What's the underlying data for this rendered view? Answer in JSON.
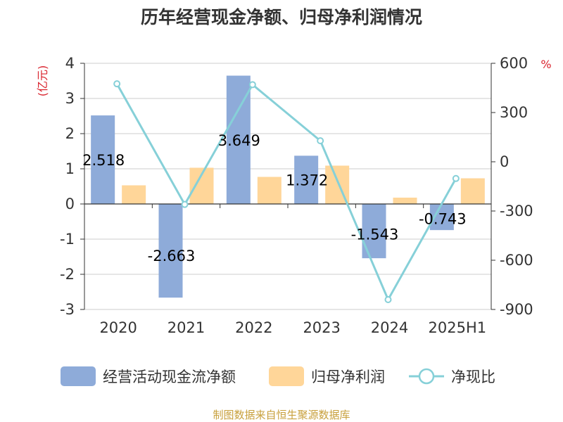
{
  "title": "历年经营现金净额、归母净利润情况",
  "source": "制图数据来自恒生聚源数据库",
  "left_unit": "(亿元)",
  "right_unit": "%",
  "colors": {
    "operating_cash": "#8eabd9",
    "net_profit": "#ffd699",
    "ratio": "#86d0d8",
    "unit": "#d9232d",
    "source": "#c8a03c"
  },
  "chart_data": {
    "type": "bar",
    "categories": [
      "2020",
      "2021",
      "2022",
      "2023",
      "2024",
      "2025H1"
    ],
    "series": [
      {
        "name": "经营活动现金流净额",
        "type": "bar",
        "axis": "left",
        "values": [
          2.518,
          -2.663,
          3.649,
          1.372,
          -1.543,
          -0.743
        ],
        "labels": [
          "2.518",
          "-2.663",
          "3.649",
          "1.372",
          "-1.543",
          "-0.743"
        ]
      },
      {
        "name": "归母净利润",
        "type": "bar",
        "axis": "left",
        "values": [
          0.53,
          1.03,
          0.77,
          1.09,
          0.18,
          0.73
        ]
      },
      {
        "name": "净现比",
        "type": "line",
        "axis": "right",
        "values": [
          475,
          -260,
          470,
          128,
          -840,
          -102
        ]
      }
    ],
    "y_left": {
      "min": -3,
      "max": 4,
      "ticks": [
        "-3",
        "-2",
        "-1",
        "0",
        "1",
        "2",
        "3",
        "4"
      ]
    },
    "y_right": {
      "min": -900,
      "max": 600,
      "ticks": [
        "-900",
        "-600",
        "-300",
        "0",
        "300",
        "600"
      ]
    },
    "grid": true,
    "legend": "bottom"
  }
}
